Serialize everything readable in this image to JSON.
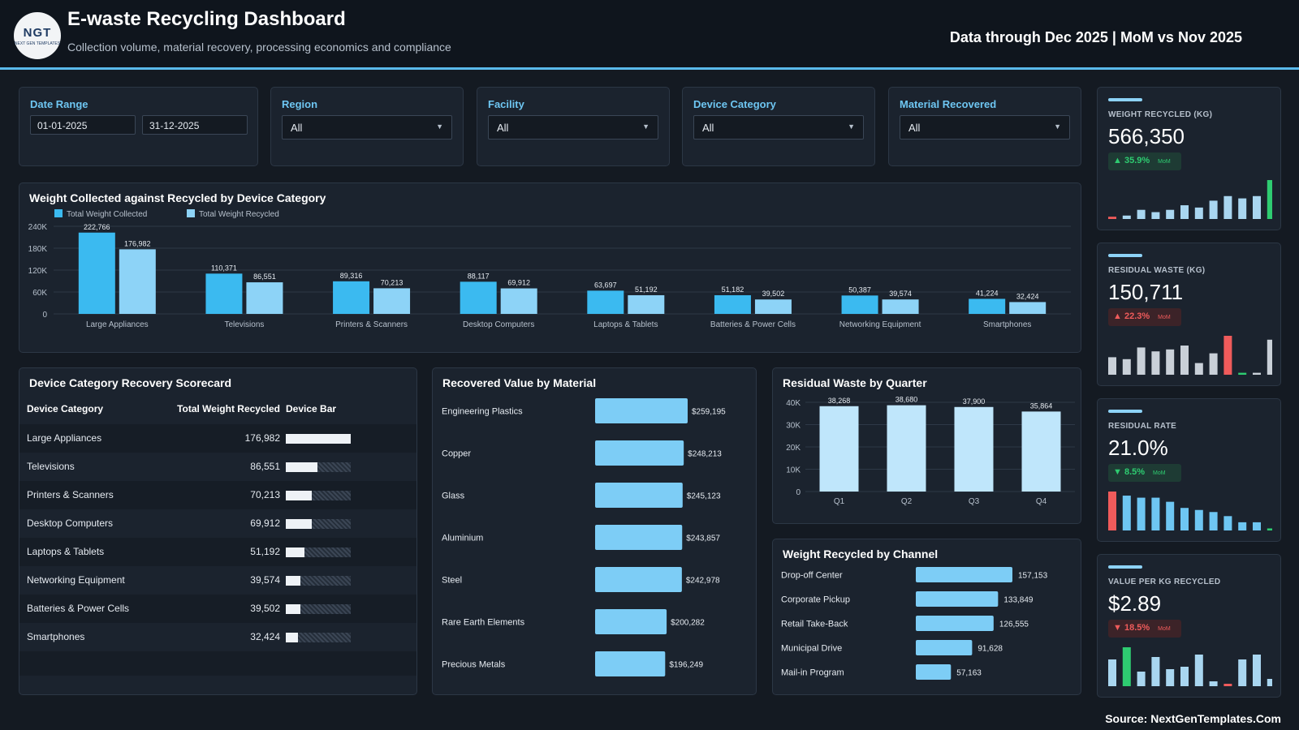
{
  "header": {
    "logo_text": "NGT",
    "logo_subtext": "NEXT GEN TEMPLATES",
    "title": "E-waste Recycling Dashboard",
    "subtitle": "Collection volume, material recovery, processing economics and compliance",
    "data_through": "Data through Dec 2025 | MoM vs Nov 2025"
  },
  "filters": {
    "date_range": {
      "label": "Date Range",
      "start": "01-01-2025",
      "end": "31-12-2025"
    },
    "region": {
      "label": "Region",
      "value": "All"
    },
    "facility": {
      "label": "Facility",
      "value": "All"
    },
    "device_category": {
      "label": "Device Category",
      "value": "All"
    },
    "material_recovered": {
      "label": "Material Recovered",
      "value": "All"
    }
  },
  "kpis": [
    {
      "label": "WEIGHT RECYCLED (KG)",
      "value": "566,350",
      "change": "35.9%",
      "direction": "up",
      "status": "good",
      "mom": "MoM",
      "spark": [
        1,
        1.5,
        4,
        3,
        4,
        6,
        5,
        8,
        10,
        9,
        10,
        17
      ],
      "spark_colors": [
        "#ef5b5b",
        "#a9d6f0",
        "#a9d6f0",
        "#a9d6f0",
        "#a9d6f0",
        "#a9d6f0",
        "#a9d6f0",
        "#a9d6f0",
        "#a9d6f0",
        "#a9d6f0",
        "#a9d6f0",
        "#2ecc71"
      ]
    },
    {
      "label": "RESIDUAL WASTE (KG)",
      "value": "150,711",
      "change": "22.3%",
      "direction": "up",
      "status": "bad",
      "mom": "MoM",
      "spark": [
        9,
        8,
        14,
        12,
        13,
        15,
        6,
        11,
        20,
        1,
        1,
        18
      ],
      "spark_colors": [
        "#c9d0d8",
        "#c9d0d8",
        "#c9d0d8",
        "#c9d0d8",
        "#c9d0d8",
        "#c9d0d8",
        "#c9d0d8",
        "#c9d0d8",
        "#ef5b5b",
        "#2ecc71",
        "#c9d0d8",
        "#c9d0d8"
      ]
    },
    {
      "label": "RESIDUAL RATE",
      "value": "21.0%",
      "change": "8.5%",
      "direction": "down",
      "status": "good",
      "mom": "MoM",
      "spark": [
        19,
        17,
        16,
        16,
        14,
        11,
        10,
        9,
        7,
        4,
        4,
        1
      ],
      "spark_colors": [
        "#ef5b5b",
        "#6ec6f2",
        "#6ec6f2",
        "#6ec6f2",
        "#6ec6f2",
        "#6ec6f2",
        "#6ec6f2",
        "#6ec6f2",
        "#6ec6f2",
        "#6ec6f2",
        "#6ec6f2",
        "#2ecc71"
      ]
    },
    {
      "label": "VALUE PER KG RECYCLED",
      "value": "$2.89",
      "change": "18.5%",
      "direction": "down",
      "status": "bad",
      "mom": "MoM",
      "spark": [
        11,
        16,
        6,
        12,
        7,
        8,
        13,
        2,
        1,
        11,
        13,
        3
      ],
      "spark_colors": [
        "#a9d6f0",
        "#2ecc71",
        "#a9d6f0",
        "#a9d6f0",
        "#a9d6f0",
        "#a9d6f0",
        "#a9d6f0",
        "#a9d6f0",
        "#ef5b5b",
        "#a9d6f0",
        "#a9d6f0",
        "#a9d6f0"
      ]
    }
  ],
  "chart_data": [
    {
      "type": "bar",
      "title": "Weight Collected against Recycled by Device Category",
      "categories": [
        "Large Appliances",
        "Televisions",
        "Printers & Scanners",
        "Desktop Computers",
        "Laptops & Tablets",
        "Batteries & Power Cells",
        "Networking Equipment",
        "Smartphones"
      ],
      "series": [
        {
          "name": "Total Weight Collected",
          "color": "#3bbaf0",
          "values": [
            222766,
            110371,
            89316,
            88117,
            63697,
            51182,
            50387,
            41224
          ]
        },
        {
          "name": "Total Weight Recycled",
          "color": "#8dd3f7",
          "values": [
            176982,
            86551,
            70213,
            69912,
            51192,
            39502,
            39574,
            32424
          ]
        }
      ],
      "value_labels": [
        [
          "222,766",
          "110,371",
          "89,316",
          "88,117",
          "63,697",
          "51,182",
          "50,387",
          "41,224"
        ],
        [
          "176,982",
          "86,551",
          "70,213",
          "69,912",
          "51,192",
          "39,502",
          "39,574",
          "32,424"
        ]
      ],
      "y_ticks": [
        "0",
        "60K",
        "120K",
        "180K",
        "240K"
      ],
      "ylim": [
        0,
        240000
      ],
      "legend": "top-left"
    },
    {
      "type": "bar",
      "orientation": "horizontal",
      "title": "Recovered Value by Material",
      "categories": [
        "Engineering Plastics",
        "Copper",
        "Glass",
        "Aluminium",
        "Steel",
        "Rare Earth Elements",
        "Precious Metals"
      ],
      "values": [
        259195,
        248213,
        245123,
        243857,
        242978,
        200282,
        196249
      ],
      "value_labels": [
        "$259,195",
        "$248,213",
        "$245,123",
        "$243,857",
        "$242,978",
        "$200,282",
        "$196,249"
      ],
      "color": "#7dcdf6"
    },
    {
      "type": "bar",
      "title": "Residual Waste by Quarter",
      "categories": [
        "Q1",
        "Q2",
        "Q3",
        "Q4"
      ],
      "values": [
        38268,
        38680,
        37900,
        35864
      ],
      "value_labels": [
        "38,268",
        "38,680",
        "37,900",
        "35,864"
      ],
      "y_ticks": [
        "0",
        "10K",
        "20K",
        "30K",
        "40K"
      ],
      "ylim": [
        0,
        40000
      ],
      "color": "#bfe6fb"
    },
    {
      "type": "bar",
      "orientation": "horizontal",
      "title": "Weight Recycled by Channel",
      "categories": [
        "Drop-off Center",
        "Corporate Pickup",
        "Retail Take-Back",
        "Municipal Drive",
        "Mail-in Program"
      ],
      "values": [
        157153,
        133849,
        126555,
        91628,
        57163
      ],
      "value_labels": [
        "157,153",
        "133,849",
        "126,555",
        "91,628",
        "57,163"
      ],
      "color": "#7dcdf6"
    }
  ],
  "scorecard": {
    "title": "Device Category Recovery Scorecard",
    "headers": [
      "Device Category",
      "Total Weight Recycled",
      "Device Bar"
    ],
    "rows": [
      {
        "category": "Large Appliances",
        "value": "176,982",
        "ratio": 1.0
      },
      {
        "category": "Televisions",
        "value": "86,551",
        "ratio": 0.489
      },
      {
        "category": "Printers & Scanners",
        "value": "70,213",
        "ratio": 0.397
      },
      {
        "category": "Desktop Computers",
        "value": "69,912",
        "ratio": 0.395
      },
      {
        "category": "Laptops & Tablets",
        "value": "51,192",
        "ratio": 0.289
      },
      {
        "category": "Networking Equipment",
        "value": "39,574",
        "ratio": 0.224
      },
      {
        "category": "Batteries & Power Cells",
        "value": "39,502",
        "ratio": 0.223
      },
      {
        "category": "Smartphones",
        "value": "32,424",
        "ratio": 0.183
      }
    ]
  },
  "footer": {
    "source": "Source: NextGenTemplates.Com"
  }
}
